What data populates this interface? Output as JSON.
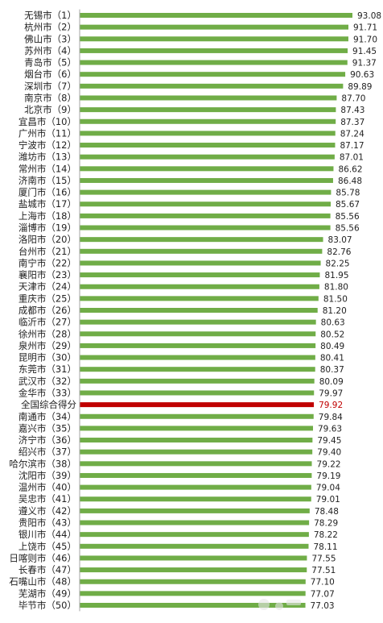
{
  "chart_data": {
    "type": "bar",
    "orientation": "horizontal",
    "title": "",
    "xlabel": "",
    "ylabel": "",
    "grid": false,
    "legend": "none",
    "xlim": [
      0,
      93.08
    ],
    "colors": {
      "bar": "#70ad47",
      "highlight": "#c00000",
      "axis": "#a6a6a6",
      "text": "#222222"
    },
    "highlight_category": "全国综合得分",
    "categories": [
      "无锡市（1）",
      "杭州市（2）",
      "佛山市（3）",
      "苏州市（4）",
      "青岛市（5）",
      "烟台市（6）",
      "深圳市（7）",
      "南京市（8）",
      "北京市（9）",
      "宜昌市（10）",
      "广州市（11）",
      "宁波市（12）",
      "潍坊市（13）",
      "常州市（14）",
      "济南市（15）",
      "厦门市（16）",
      "盐城市（17）",
      "上海市（18）",
      "淄博市（19）",
      "洛阳市（20）",
      "台州市（21）",
      "南宁市（22）",
      "襄阳市（23）",
      "天津市（24）",
      "重庆市（25）",
      "成都市（26）",
      "临沂市（27）",
      "徐州市（28）",
      "泉州市（29）",
      "昆明市（30）",
      "东莞市（31）",
      "武汉市（32）",
      "金华市（33）",
      "全国综合得分",
      "南通市（34）",
      "嘉兴市（35）",
      "济宁市（36）",
      "绍兴市（37）",
      "哈尔滨市（38）",
      "沈阳市（39）",
      "温州市（40）",
      "吴忠市（41）",
      "遵义市（42）",
      "贵阳市（43）",
      "银川市（44）",
      "上饶市（45）",
      "日喀则市（46）",
      "长春市（47）",
      "石嘴山市（48）",
      "芜湖市（49）",
      "毕节市（50）"
    ],
    "values": [
      93.08,
      91.71,
      91.7,
      91.45,
      91.37,
      90.63,
      89.89,
      87.7,
      87.43,
      87.37,
      87.24,
      87.17,
      87.01,
      86.62,
      86.48,
      85.78,
      85.67,
      85.56,
      85.56,
      83.07,
      82.76,
      82.25,
      81.95,
      81.8,
      81.5,
      81.2,
      80.63,
      80.52,
      80.49,
      80.41,
      80.37,
      80.09,
      79.97,
      79.92,
      79.84,
      79.63,
      79.45,
      79.4,
      79.22,
      79.19,
      79.04,
      79.01,
      78.48,
      78.29,
      78.22,
      78.11,
      77.55,
      77.51,
      77.1,
      77.07,
      77.03
    ],
    "value_labels": [
      "93.08",
      "91.71",
      "91.70",
      "91.45",
      "91.37",
      "90.63",
      "89.89",
      "87.70",
      "87.43",
      "87.37",
      "87.24",
      "87.17",
      "87.01",
      "86.62",
      "86.48",
      "85.78",
      "85.67",
      "85.56",
      "85.56",
      "83.07",
      "82.76",
      "82.25",
      "81.95",
      "81.80",
      "81.50",
      "81.20",
      "80.63",
      "80.52",
      "80.49",
      "80.41",
      "80.37",
      "80.09",
      "79.97",
      "79.92",
      "79.84",
      "79.63",
      "79.45",
      "79.40",
      "79.22",
      "79.19",
      "79.04",
      "79.01",
      "78.48",
      "78.29",
      "78.22",
      "78.11",
      "77.55",
      "77.51",
      "77.10",
      "77.07",
      "77.03"
    ]
  }
}
